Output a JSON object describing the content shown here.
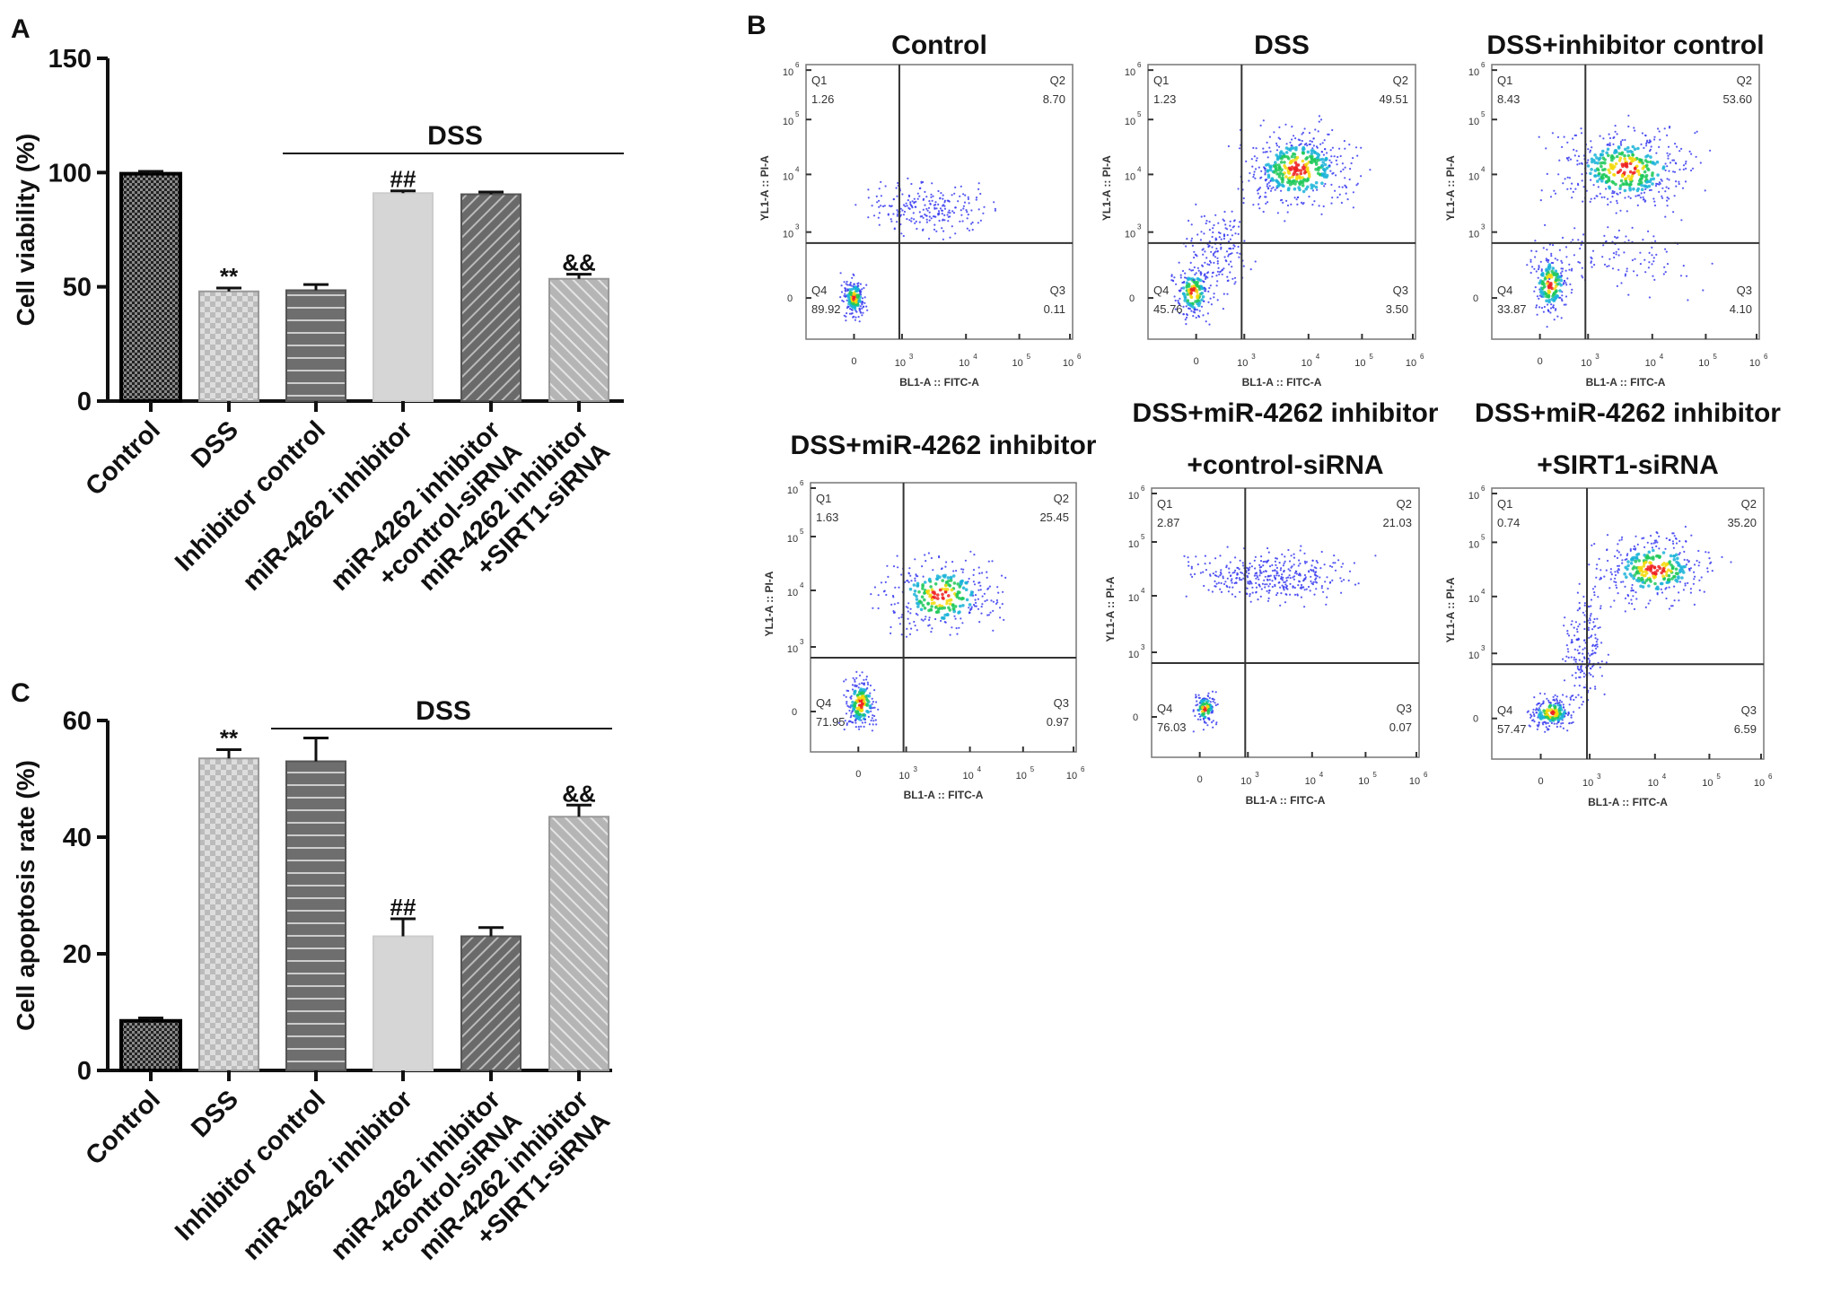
{
  "panel_labels": {
    "a": "A",
    "b": "B",
    "c": "C"
  },
  "chart_data": [
    {
      "id": "A",
      "type": "bar",
      "ylabel": "Cell viability (%)",
      "xlabel": "",
      "ylim": [
        0,
        150
      ],
      "yticks": [
        "0",
        "50",
        "100",
        "150"
      ],
      "ytick_values": [
        0,
        50,
        100,
        150
      ],
      "group_label": "DSS",
      "categories": [
        [
          "Control"
        ],
        [
          "DSS"
        ],
        [
          "Inhibitor control"
        ],
        [
          "miR-4262 inhibitor"
        ],
        [
          "miR-4262 inhibitor",
          "+control-siRNA"
        ],
        [
          "miR-4262 inhibitor",
          "+SIRT1-siRNA"
        ]
      ],
      "values": [
        99.5,
        48,
        48.5,
        91,
        90.5,
        53.5
      ],
      "errors": [
        1,
        1.5,
        2.5,
        1,
        1,
        2
      ],
      "annotations": [
        "",
        "**",
        "",
        "##",
        "",
        "&&"
      ]
    },
    {
      "id": "C",
      "type": "bar",
      "ylabel": "Cell apoptosis rate (%)",
      "xlabel": "",
      "ylim": [
        0,
        60
      ],
      "yticks": [
        "0",
        "20",
        "40",
        "60"
      ],
      "ytick_values": [
        0,
        20,
        40,
        60
      ],
      "group_label": "DSS",
      "categories": [
        [
          "Control"
        ],
        [
          "DSS"
        ],
        [
          "Inhibitor control"
        ],
        [
          "miR-4262 inhibitor"
        ],
        [
          "miR-4262 inhibitor",
          "+control-siRNA"
        ],
        [
          "miR-4262 inhibitor",
          "+SIRT1-siRNA"
        ]
      ],
      "values": [
        8.5,
        53.5,
        53,
        23,
        23,
        43.5
      ],
      "errors": [
        0.5,
        1.5,
        4,
        3,
        1.5,
        2
      ],
      "annotations": [
        "",
        "**",
        "",
        "##",
        "",
        "&&"
      ]
    },
    {
      "id": "B",
      "type": "scatter",
      "xlabel": "BL1-A :: FITC-A",
      "ylabel": "YL1-A :: PI-A",
      "xticks": [
        "0",
        "3",
        "4",
        "5",
        "6"
      ],
      "yticks": [
        "0",
        "3",
        "4",
        "5",
        "6"
      ],
      "tick_base": "10",
      "plots": [
        {
          "title": [
            "Control"
          ],
          "q1": "1.26",
          "q2": "8.70",
          "q3": "0.11",
          "q4": "89.92"
        },
        {
          "title": [
            "DSS"
          ],
          "q1": "1.23",
          "q2": "49.51",
          "q3": "3.50",
          "q4": "45.76"
        },
        {
          "title": [
            "DSS+inhibitor control"
          ],
          "q1": "8.43",
          "q2": "53.60",
          "q3": "4.10",
          "q4": "33.87"
        },
        {
          "title": [
            "DSS+miR-4262 inhibitor"
          ],
          "q1": "1.63",
          "q2": "25.45",
          "q3": "0.97",
          "q4": "71.95"
        },
        {
          "title": [
            "DSS+miR-4262 inhibitor",
            "+control-siRNA"
          ],
          "q1": "2.87",
          "q2": "21.03",
          "q3": "0.07",
          "q4": "76.03"
        },
        {
          "title": [
            "DSS+miR-4262 inhibitor",
            "+SIRT1-siRNA"
          ],
          "q1": "0.74",
          "q2": "35.20",
          "q3": "6.59",
          "q4": "57.47"
        }
      ],
      "quadrant_names": [
        "Q1",
        "Q2",
        "Q3",
        "Q4"
      ]
    }
  ]
}
